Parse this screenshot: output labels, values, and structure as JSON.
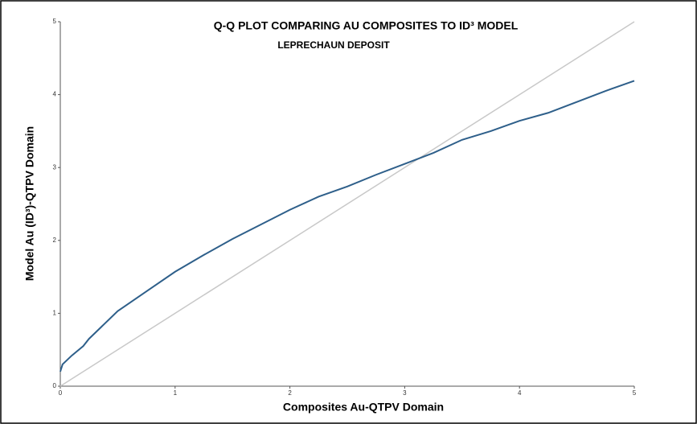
{
  "chart_data": {
    "type": "line",
    "title": "Q-Q PLOT COMPARING AU COMPOSITES TO ID³ MODEL",
    "subtitle": "LEPRECHAUN DEPOSIT",
    "x_label": "Composites Au-QTPV Domain",
    "y_label": "Model Au (ID³)-QTPV Domain",
    "xlim": [
      0,
      5
    ],
    "ylim": [
      0,
      5
    ],
    "xticks": [
      0,
      1,
      2,
      3,
      4,
      5
    ],
    "yticks": [
      0,
      1,
      2,
      3,
      4,
      5
    ],
    "grid": false,
    "series": [
      {
        "color": "#2e5f8a",
        "x": [
          0,
          0.02,
          0.1,
          0.2,
          0.25,
          0.5,
          0.75,
          1.0,
          1.25,
          1.5,
          1.75,
          2.0,
          2.25,
          2.5,
          2.75,
          3.0,
          3.25,
          3.5,
          3.75,
          4.0,
          4.25,
          4.5,
          4.75,
          5.0
        ],
        "values": [
          0.2,
          0.3,
          0.42,
          0.55,
          0.65,
          1.03,
          1.3,
          1.57,
          1.8,
          2.02,
          2.22,
          2.42,
          2.6,
          2.74,
          2.9,
          3.05,
          3.2,
          3.38,
          3.5,
          3.64,
          3.75,
          3.9,
          4.05,
          4.19
        ]
      },
      {
        "color": "#c8c8c8",
        "x": [
          0,
          5
        ],
        "values": [
          0,
          5
        ]
      }
    ]
  }
}
